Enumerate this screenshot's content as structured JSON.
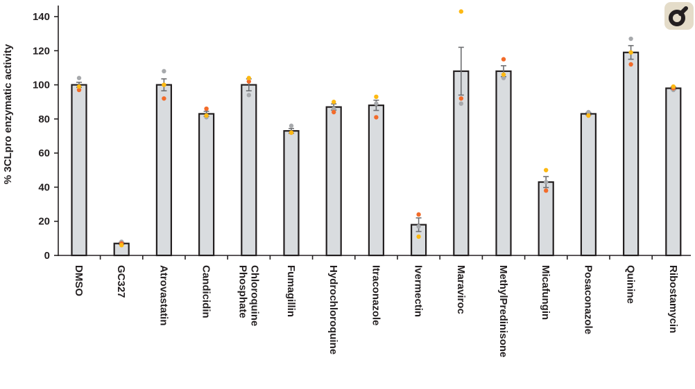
{
  "chart_data": {
    "type": "bar",
    "ylabel": "% 3CLpro enzymatic activity",
    "ylim": [
      0,
      150
    ],
    "yticks": [
      0,
      20,
      40,
      60,
      80,
      100,
      120,
      140
    ],
    "grid": false,
    "categories": [
      "DMSO",
      "GC327",
      "Atrovastatin",
      "Candicidin",
      "Chloroquine\nPhosphate",
      "Fumagillin",
      "Hydrochloroquine",
      "Itraconazole",
      "Ivermectin",
      "Maraviroc",
      "MethylPredinisone",
      "Micafungin",
      "Posaconazole",
      "Quinine",
      "Ribostamycin"
    ],
    "values": [
      100,
      7,
      100,
      83,
      100,
      73,
      87,
      88,
      18,
      108,
      108,
      43,
      83,
      119,
      98
    ],
    "errors": [
      1.5,
      0.6,
      3.5,
      1.5,
      3.5,
      1.4,
      1.8,
      3.0,
      4.0,
      14.0,
      3.2,
      3.2,
      0.8,
      4.0,
      0.8
    ],
    "replicates": [
      {
        "name": "replicate-gray",
        "color": "#a7a9ac",
        "values": [
          104,
          8,
          108,
          81,
          94,
          76,
          86,
          89,
          17,
          89,
          104,
          43,
          84,
          127,
          97
        ]
      },
      {
        "name": "replicate-orange",
        "color": "#f26b2a",
        "values": [
          97,
          7,
          92,
          86,
          102,
          72,
          84,
          81,
          24,
          92,
          115,
          38,
          82,
          112,
          98
        ]
      },
      {
        "name": "replicate-yellow",
        "color": "#fdb913",
        "values": [
          99,
          6,
          100,
          82,
          104,
          72,
          90,
          93,
          11,
          143,
          106,
          50,
          82,
          119,
          99
        ]
      }
    ]
  },
  "colors": {
    "bar_fill": "#d9dcdf",
    "bar_stroke": "#231f20",
    "logo_badge": "#e4dcc9"
  },
  "logo": {
    "icon": "publisher-logo-icon"
  }
}
